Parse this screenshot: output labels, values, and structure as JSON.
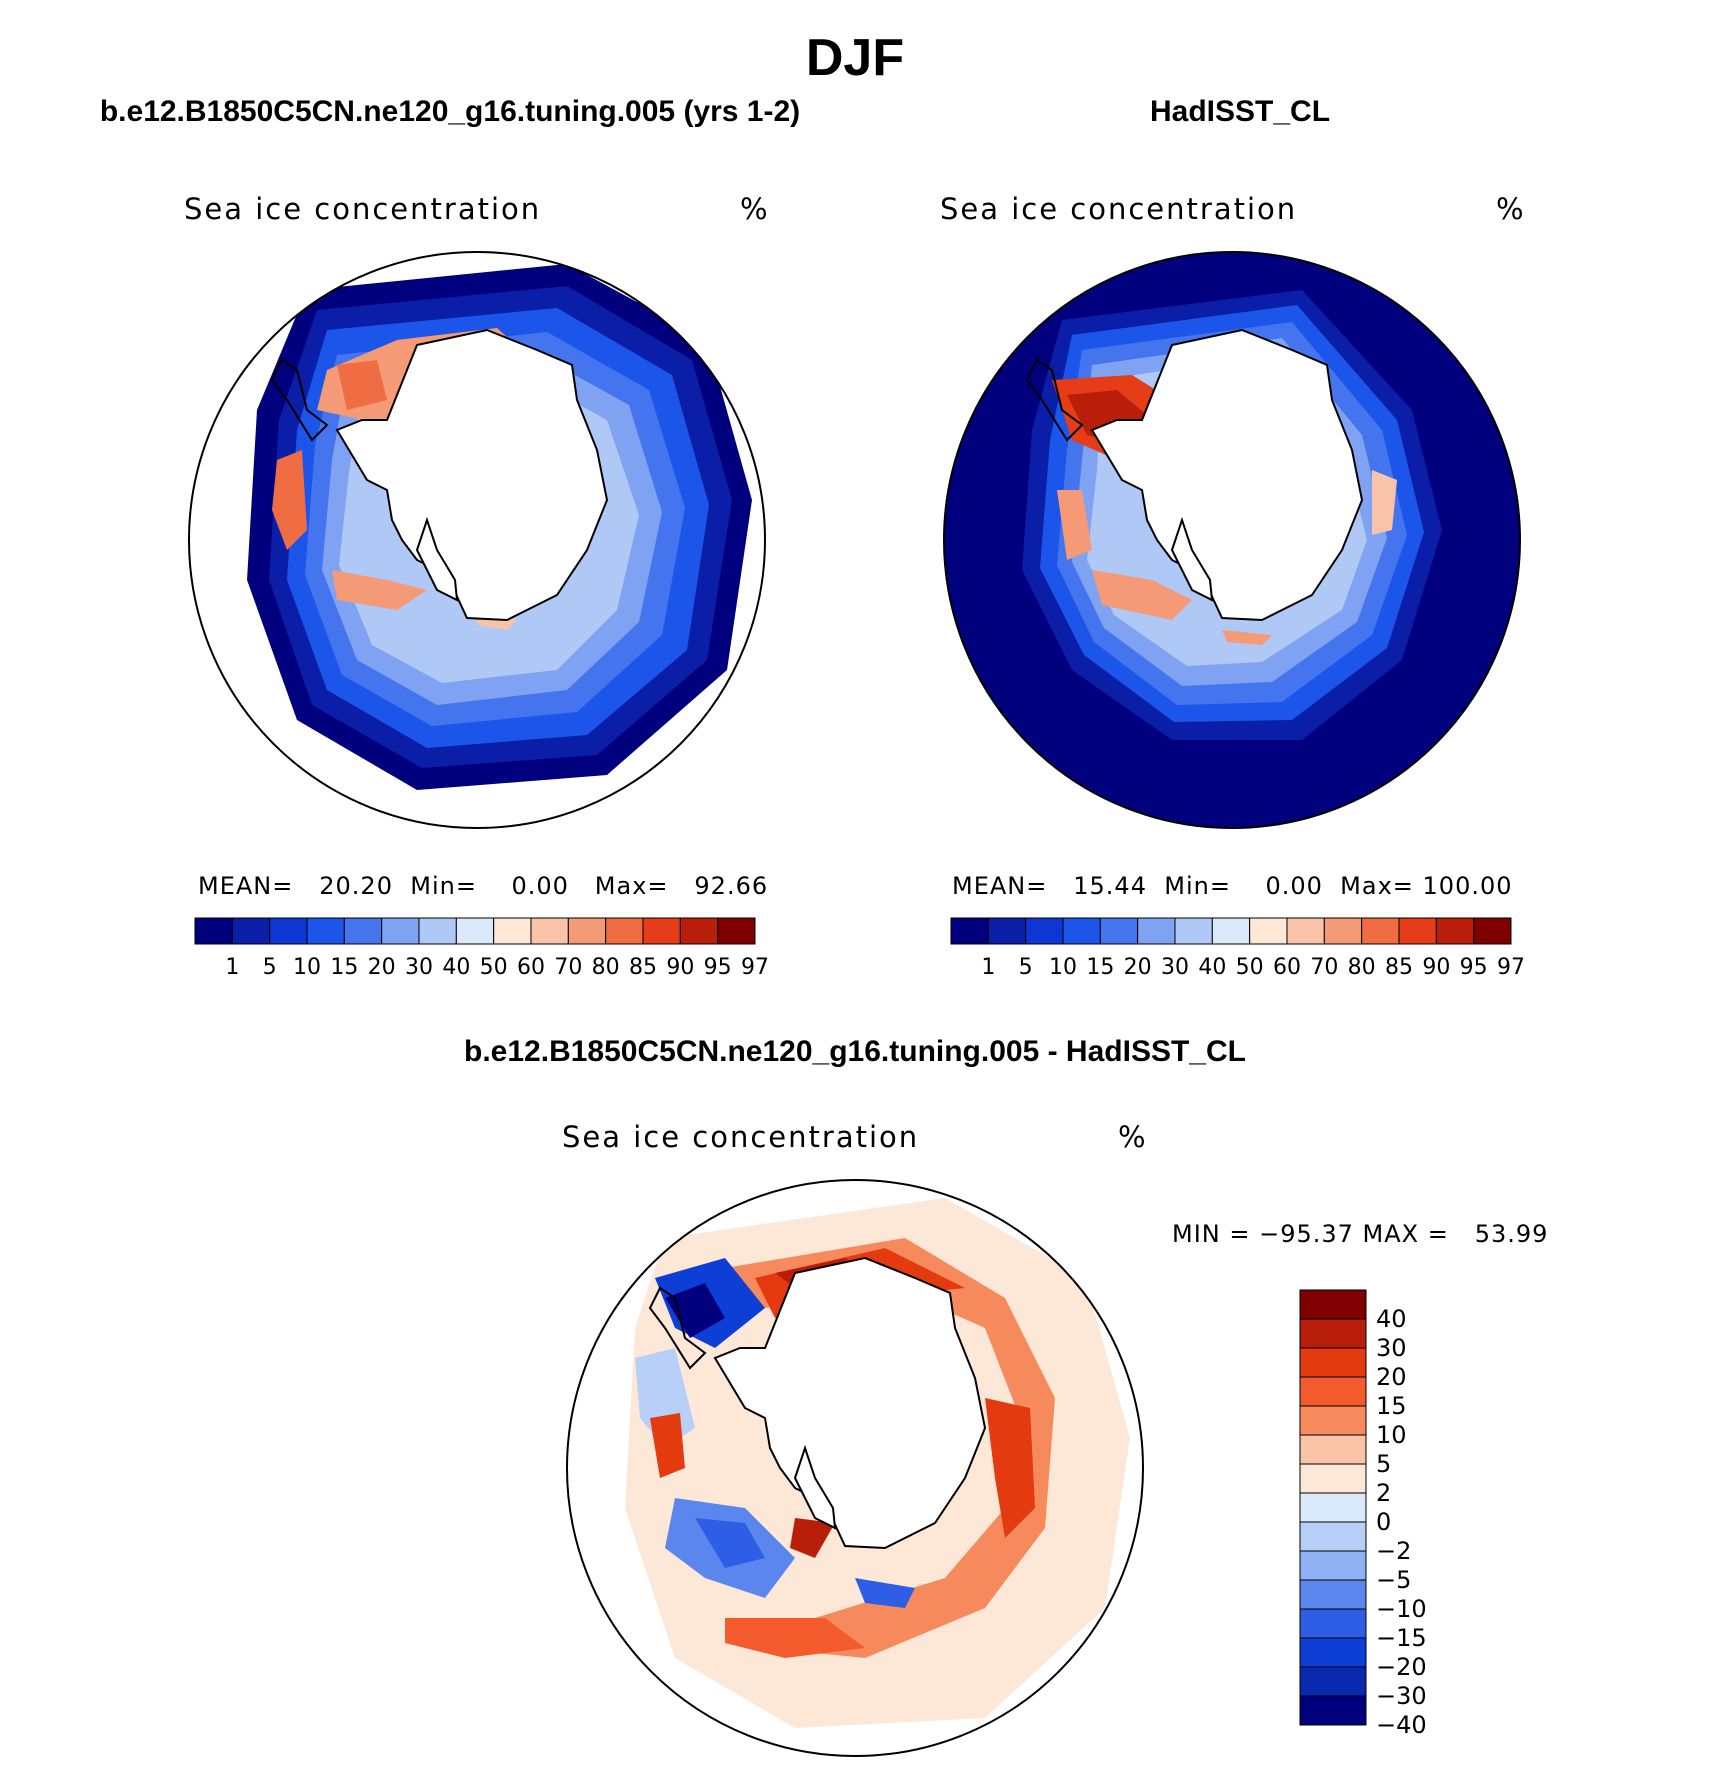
{
  "title": "DJF",
  "panels": [
    {
      "id": "model",
      "title": "b.e12.B1850C5CN.ne120_g16.tuning.005 (yrs 1-2)",
      "variable": "Sea ice concentration",
      "units": "%",
      "mean_label": "MEAN=",
      "mean": "20.20",
      "min_label": "Min=",
      "min": "0.00",
      "max_label": "Max=",
      "max": "92.66"
    },
    {
      "id": "obs",
      "title": "HadISST_CL",
      "variable": "Sea ice concentration",
      "units": "%",
      "mean_label": "MEAN=",
      "mean": "15.44",
      "min_label": "Min=",
      "min": "0.00",
      "max_label": "Max=",
      "max": "100.00"
    },
    {
      "id": "diff",
      "title": "b.e12.B1850C5CN.ne120_g16.tuning.005 - HadISST_CL",
      "variable": "Sea ice concentration",
      "units": "%",
      "minmax": "MIN = −95.37 MAX =   53.99"
    }
  ],
  "colorbar_abs": {
    "labels": [
      "1",
      "5",
      "10",
      "15",
      "20",
      "30",
      "40",
      "50",
      "60",
      "70",
      "80",
      "85",
      "90",
      "95",
      "97"
    ],
    "colors": [
      "#00007f",
      "#0a1ea8",
      "#0d36d4",
      "#1c55ea",
      "#4575ee",
      "#7fa2f2",
      "#b0c8f6",
      "#daeafb",
      "#fde8d8",
      "#f8c3a8",
      "#f49a76",
      "#f06c42",
      "#e63d18",
      "#b81e0a",
      "#7f0000"
    ]
  },
  "colorbar_diff": {
    "labels": [
      "40",
      "30",
      "20",
      "15",
      "10",
      "5",
      "2",
      "0",
      "−2",
      "−5",
      "−10",
      "−15",
      "−20",
      "−30",
      "−40"
    ],
    "colors": [
      "#7f0000",
      "#b81e0a",
      "#e33a10",
      "#f45b2c",
      "#f78a5c",
      "#f9c3a8",
      "#fde8d8",
      "#daeafb",
      "#b8d0f7",
      "#8fb0f3",
      "#5b86ee",
      "#2e5ee6",
      "#0d3fd6",
      "#0a28b0",
      "#00007f"
    ]
  },
  "colors": {
    "land": "#ffffff",
    "coast": "#000000"
  }
}
